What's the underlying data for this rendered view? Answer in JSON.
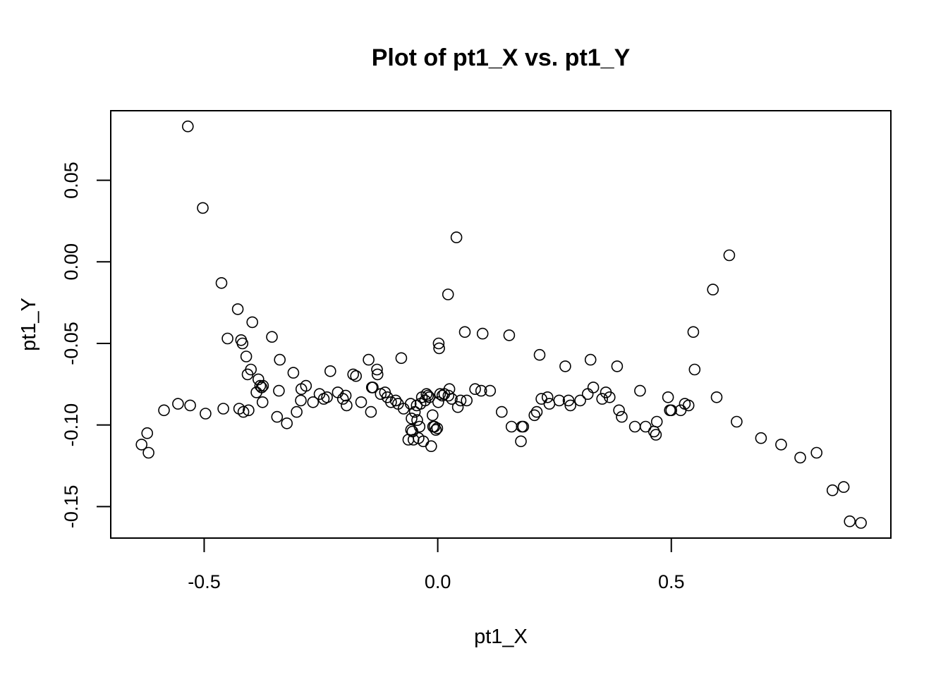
{
  "chart_data": {
    "type": "scatter",
    "title": "Plot of pt1_X vs. pt1_Y",
    "xlabel": "pt1_X",
    "ylabel": "pt1_Y",
    "xlim": [
      -0.7,
      0.97
    ],
    "ylim": [
      -0.1693,
      0.0926
    ],
    "xticks": [
      -0.5,
      0.0,
      0.5
    ],
    "xtick_labels": [
      "-0.5",
      "0.0",
      "0.5"
    ],
    "yticks": [
      -0.15,
      -0.1,
      -0.05,
      0.0,
      0.05
    ],
    "ytick_labels": [
      "-0.15",
      "-0.10",
      "-0.05",
      "0.00",
      "0.05"
    ],
    "grid": false,
    "legend": "none",
    "marker": "open-circle",
    "color": "#000000",
    "points": [
      [
        -0.634,
        -0.112
      ],
      [
        -0.622,
        -0.105
      ],
      [
        -0.619,
        -0.117
      ],
      [
        -0.586,
        -0.091
      ],
      [
        -0.556,
        -0.087
      ],
      [
        -0.53,
        -0.088
      ],
      [
        -0.535,
        0.083
      ],
      [
        -0.503,
        0.033
      ],
      [
        -0.497,
        -0.093
      ],
      [
        -0.463,
        -0.013
      ],
      [
        -0.459,
        -0.09
      ],
      [
        -0.45,
        -0.047
      ],
      [
        -0.428,
        -0.029
      ],
      [
        -0.425,
        -0.09
      ],
      [
        -0.421,
        -0.048
      ],
      [
        -0.418,
        -0.05
      ],
      [
        -0.416,
        -0.092
      ],
      [
        -0.41,
        -0.058
      ],
      [
        -0.407,
        -0.069
      ],
      [
        -0.405,
        -0.091
      ],
      [
        -0.4,
        -0.066
      ],
      [
        -0.397,
        -0.037
      ],
      [
        -0.388,
        -0.08
      ],
      [
        -0.384,
        -0.072
      ],
      [
        -0.38,
        -0.076
      ],
      [
        -0.377,
        -0.077
      ],
      [
        -0.375,
        -0.086
      ],
      [
        -0.374,
        -0.076
      ],
      [
        -0.355,
        -0.046
      ],
      [
        -0.344,
        -0.095
      ],
      [
        -0.34,
        -0.079
      ],
      [
        -0.338,
        -0.06
      ],
      [
        -0.323,
        -0.099
      ],
      [
        -0.309,
        -0.068
      ],
      [
        -0.302,
        -0.092
      ],
      [
        -0.293,
        -0.085
      ],
      [
        -0.292,
        -0.078
      ],
      [
        -0.282,
        -0.076
      ],
      [
        -0.267,
        -0.086
      ],
      [
        -0.253,
        -0.081
      ],
      [
        -0.244,
        -0.084
      ],
      [
        -0.237,
        -0.083
      ],
      [
        -0.23,
        -0.067
      ],
      [
        -0.214,
        -0.08
      ],
      [
        -0.203,
        -0.084
      ],
      [
        -0.197,
        -0.082
      ],
      [
        -0.195,
        -0.088
      ],
      [
        -0.181,
        -0.069
      ],
      [
        -0.175,
        -0.07
      ],
      [
        -0.164,
        -0.086
      ],
      [
        -0.148,
        -0.06
      ],
      [
        -0.143,
        -0.092
      ],
      [
        -0.141,
        -0.077
      ],
      [
        -0.139,
        -0.077
      ],
      [
        -0.13,
        -0.066
      ],
      [
        -0.129,
        -0.069
      ],
      [
        -0.122,
        -0.081
      ],
      [
        -0.113,
        -0.08
      ],
      [
        -0.108,
        -0.083
      ],
      [
        -0.1,
        -0.086
      ],
      [
        -0.09,
        -0.085
      ],
      [
        -0.085,
        -0.087
      ],
      [
        -0.078,
        -0.059
      ],
      [
        -0.073,
        -0.09
      ],
      [
        -0.063,
        -0.109
      ],
      [
        -0.058,
        -0.087
      ],
      [
        -0.057,
        -0.103
      ],
      [
        -0.056,
        -0.096
      ],
      [
        -0.054,
        -0.104
      ],
      [
        -0.052,
        -0.109
      ],
      [
        -0.049,
        -0.092
      ],
      [
        -0.045,
        -0.088
      ],
      [
        -0.044,
        -0.097
      ],
      [
        -0.041,
        -0.108
      ],
      [
        -0.039,
        -0.101
      ],
      [
        -0.037,
        -0.087
      ],
      [
        -0.034,
        -0.083
      ],
      [
        -0.031,
        -0.11
      ],
      [
        -0.027,
        -0.085
      ],
      [
        -0.024,
        -0.081
      ],
      [
        -0.021,
        -0.082
      ],
      [
        -0.018,
        -0.083
      ],
      [
        -0.014,
        -0.113
      ],
      [
        -0.011,
        -0.094
      ],
      [
        -0.01,
        -0.101
      ],
      [
        -0.007,
        -0.101
      ],
      [
        -0.004,
        -0.103
      ],
      [
        -0.001,
        -0.102
      ],
      [
        0.001,
        -0.086
      ],
      [
        0.002,
        -0.05
      ],
      [
        0.003,
        -0.053
      ],
      [
        0.005,
        -0.081
      ],
      [
        0.01,
        -0.082
      ],
      [
        0.014,
        -0.081
      ],
      [
        0.022,
        -0.02
      ],
      [
        0.023,
        -0.082
      ],
      [
        0.025,
        -0.078
      ],
      [
        0.03,
        -0.084
      ],
      [
        0.04,
        0.015
      ],
      [
        0.043,
        -0.089
      ],
      [
        0.049,
        -0.085
      ],
      [
        0.058,
        -0.043
      ],
      [
        0.062,
        -0.085
      ],
      [
        0.08,
        -0.078
      ],
      [
        0.093,
        -0.079
      ],
      [
        0.096,
        -0.044
      ],
      [
        0.112,
        -0.079
      ],
      [
        0.137,
        -0.092
      ],
      [
        0.153,
        -0.045
      ],
      [
        0.158,
        -0.101
      ],
      [
        0.178,
        -0.11
      ],
      [
        0.18,
        -0.101
      ],
      [
        0.183,
        -0.101
      ],
      [
        0.207,
        -0.094
      ],
      [
        0.212,
        -0.092
      ],
      [
        0.218,
        -0.057
      ],
      [
        0.222,
        -0.084
      ],
      [
        0.235,
        -0.083
      ],
      [
        0.239,
        -0.087
      ],
      [
        0.26,
        -0.085
      ],
      [
        0.273,
        -0.064
      ],
      [
        0.28,
        -0.085
      ],
      [
        0.284,
        -0.088
      ],
      [
        0.305,
        -0.085
      ],
      [
        0.321,
        -0.081
      ],
      [
        0.327,
        -0.06
      ],
      [
        0.333,
        -0.077
      ],
      [
        0.352,
        -0.084
      ],
      [
        0.36,
        -0.08
      ],
      [
        0.368,
        -0.083
      ],
      [
        0.384,
        -0.064
      ],
      [
        0.388,
        -0.091
      ],
      [
        0.394,
        -0.095
      ],
      [
        0.422,
        -0.101
      ],
      [
        0.433,
        -0.079
      ],
      [
        0.445,
        -0.101
      ],
      [
        0.463,
        -0.104
      ],
      [
        0.467,
        -0.106
      ],
      [
        0.469,
        -0.098
      ],
      [
        0.493,
        -0.083
      ],
      [
        0.497,
        -0.091
      ],
      [
        0.5,
        -0.091
      ],
      [
        0.52,
        -0.091
      ],
      [
        0.529,
        -0.087
      ],
      [
        0.537,
        -0.088
      ],
      [
        0.547,
        -0.043
      ],
      [
        0.55,
        -0.066
      ],
      [
        0.589,
        -0.017
      ],
      [
        0.597,
        -0.083
      ],
      [
        0.624,
        0.004
      ],
      [
        0.64,
        -0.098
      ],
      [
        0.692,
        -0.108
      ],
      [
        0.735,
        -0.112
      ],
      [
        0.776,
        -0.12
      ],
      [
        0.811,
        -0.117
      ],
      [
        0.845,
        -0.14
      ],
      [
        0.869,
        -0.138
      ],
      [
        0.882,
        -0.159
      ],
      [
        0.906,
        -0.16
      ]
    ]
  }
}
